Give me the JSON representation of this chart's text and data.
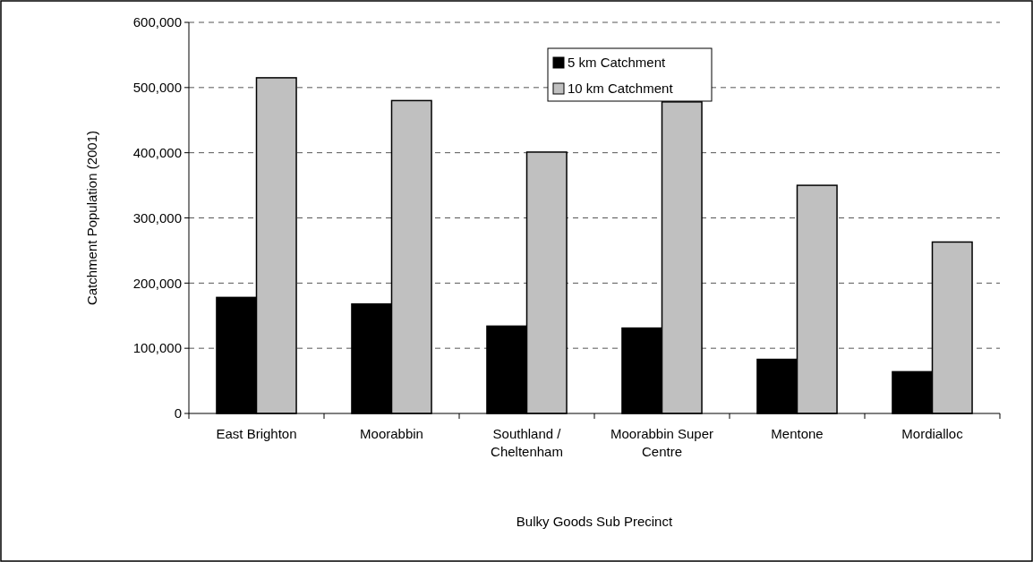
{
  "chart_data": {
    "type": "bar",
    "xlabel": "Bulky Goods Sub Precinct",
    "ylabel": "Catchment Population (2001)",
    "categories": [
      "East Brighton",
      "Moorabbin",
      "Southland / Cheltenham",
      "Moorabbin Super Centre",
      "Mentone",
      "Mordialloc"
    ],
    "series": [
      {
        "name": "5 km Catchment",
        "color": "#000000",
        "values": [
          178000,
          168000,
          134000,
          131000,
          83000,
          64000
        ]
      },
      {
        "name": "10 km Catchment",
        "color": "#c0c0c0",
        "values": [
          515000,
          480000,
          401000,
          478000,
          350000,
          263000
        ]
      }
    ],
    "ylim": [
      0,
      600000
    ],
    "yticks": [
      {
        "value": 0,
        "label": "0"
      },
      {
        "value": 100000,
        "label": "100,000"
      },
      {
        "value": 200000,
        "label": "200,000"
      },
      {
        "value": 300000,
        "label": "300,000"
      },
      {
        "value": 400000,
        "label": "400,000"
      },
      {
        "value": 500000,
        "label": "500,000"
      },
      {
        "value": 600000,
        "label": "600,000"
      }
    ],
    "grid": "y",
    "legend": "top"
  }
}
